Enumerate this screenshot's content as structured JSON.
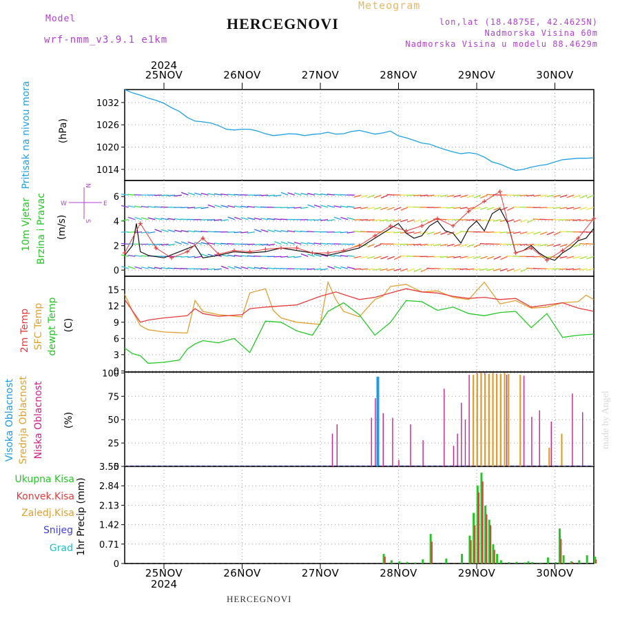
{
  "header": {
    "model_label": "Model",
    "model_name": "wrf-nmm_v3.9.1 e1km",
    "title": "HERCEGNOVI",
    "meteogram_label": "Meteogram",
    "lonlat": "lon,lat (18.4875E, 42.4625N)",
    "elevation": "Nadmorska Visina 60m",
    "model_elevation": "Nadmorska Visina u modelu 88.4629m"
  },
  "footer": {
    "station": "HERCEGNOVI",
    "watermark": "made by Angel"
  },
  "colors": {
    "pressure": "#1ea0e6",
    "temp2m": "#e83a3a",
    "sfc_temp": "#e0a030",
    "dewpoint": "#22c822",
    "high_cloud": "#1e9be6",
    "mid_cloud": "#e0a030",
    "low_cloud": "#d0208a",
    "total_precip": "#22c822",
    "conv_precip": "#e83a3a",
    "snow": "#4040e0",
    "hail": "#20c0c0",
    "wind_speed": "#111111",
    "wind_gust": "#e83a3a"
  },
  "chart_data": [
    {
      "id": "pressure",
      "type": "line",
      "ylabel_lines": [
        "Pritisak na nivou mora",
        "(hPa)"
      ],
      "yticks": [
        1014,
        1020,
        1026,
        1032
      ],
      "ylim": [
        1011,
        1035.5
      ],
      "x_days": [
        "25NOV",
        "26NOV",
        "27NOV",
        "28NOV",
        "29NOV",
        "30NOV"
      ],
      "top_year": "2024",
      "series": [
        {
          "x": [
            0,
            0.1,
            0.2,
            0.3,
            0.4,
            0.5,
            0.6,
            0.7,
            0.8,
            0.9,
            1.0,
            1.1,
            1.2,
            1.3,
            1.4,
            1.5,
            1.6,
            1.7,
            1.8,
            1.9,
            2.0,
            2.1,
            2.2,
            2.3,
            2.4,
            2.5,
            2.6,
            2.7,
            2.8,
            2.9,
            3.0,
            3.1,
            3.2,
            3.3,
            3.4,
            3.5,
            3.6,
            3.7,
            3.8,
            3.9,
            4.0,
            4.1,
            4.2,
            4.3,
            4.4,
            4.5,
            4.6,
            4.7,
            4.8,
            4.9,
            5.0,
            5.1,
            5.2,
            5.3,
            5.4,
            5.5,
            5.6,
            5.7,
            5.8,
            5.9,
            6.0
          ],
          "values": [
            1035.5,
            1034.6,
            1034.0,
            1033.2,
            1032.6,
            1031.8,
            1030.6,
            1029.6,
            1028.0,
            1027.0,
            1026.8,
            1026.5,
            1025.8,
            1024.8,
            1024.6,
            1024.8,
            1024.8,
            1024.3,
            1023.6,
            1023.1,
            1023.3,
            1023.6,
            1023.5,
            1023.1,
            1023.4,
            1023.6,
            1024.0,
            1023.5,
            1023.6,
            1024.2,
            1024.5,
            1024.0,
            1023.5,
            1023.8,
            1024.3,
            1023.0,
            1022.5,
            1021.8,
            1021.1,
            1020.8,
            1020.0,
            1019.3,
            1018.7,
            1018.2,
            1018.5,
            1018.2,
            1017.3,
            1016.0,
            1015.4,
            1014.5,
            1013.7,
            1014.0,
            1014.6,
            1015.0,
            1015.3,
            1016.0,
            1016.6,
            1016.8,
            1017.0,
            1017.0,
            1017.1
          ]
        }
      ]
    },
    {
      "id": "wind",
      "type": "line",
      "ylabel_lines": [
        "10m Vjetar",
        "Brzina i Pravac",
        "(m/s)"
      ],
      "compass": {
        "n": "N",
        "s": "S",
        "e": "E",
        "w": "W"
      },
      "yticks": [
        0,
        2,
        4,
        6
      ],
      "ylim": [
        -0.5,
        7.3
      ],
      "series": [
        {
          "name": "speed",
          "x": [
            0,
            0.1,
            0.15,
            0.2,
            0.3,
            0.5,
            0.7,
            0.9,
            1.0,
            1.2,
            1.4,
            1.6,
            1.8,
            2.0,
            2.2,
            2.4,
            2.6,
            2.8,
            3.0,
            3.1,
            3.2,
            3.3,
            3.4,
            3.5,
            3.6,
            3.7,
            3.8,
            3.9,
            4.0,
            4.1,
            4.2,
            4.3,
            4.4,
            4.5,
            4.6,
            4.7,
            4.8,
            4.9,
            5.0,
            5.1,
            5.2,
            5.3,
            5.4,
            5.5,
            5.6,
            5.7,
            5.8,
            5.9,
            6.0
          ],
          "values": [
            1.2,
            2.0,
            3.8,
            1.5,
            1.2,
            1.0,
            1.5,
            2.0,
            1.0,
            1.2,
            1.5,
            1.4,
            1.5,
            1.8,
            1.6,
            1.4,
            1.2,
            1.5,
            1.8,
            2.2,
            2.6,
            3.0,
            3.4,
            3.8,
            3.0,
            2.6,
            2.8,
            3.6,
            4.0,
            3.2,
            3.0,
            2.2,
            3.4,
            4.0,
            3.2,
            4.6,
            5.0,
            3.8,
            1.4,
            1.6,
            2.0,
            1.4,
            1.0,
            0.8,
            1.4,
            1.8,
            2.4,
            2.6,
            3.4
          ]
        },
        {
          "name": "gust",
          "x": [
            0,
            0.2,
            0.4,
            0.6,
            0.8,
            1.0,
            1.2,
            1.4,
            1.6,
            1.8,
            2.0,
            2.2,
            2.4,
            2.6,
            2.8,
            3.0,
            3.2,
            3.4,
            3.6,
            3.8,
            4.0,
            4.2,
            4.4,
            4.6,
            4.8,
            5.0,
            5.2,
            5.4,
            5.6,
            5.8,
            6.0
          ],
          "values": [
            1.4,
            3.8,
            1.8,
            1.0,
            1.5,
            2.6,
            1.3,
            1.6,
            1.5,
            1.7,
            1.8,
            1.8,
            1.4,
            1.4,
            1.6,
            2.0,
            2.8,
            3.6,
            3.2,
            3.6,
            4.2,
            3.6,
            4.8,
            5.6,
            6.4,
            1.4,
            1.8,
            0.8,
            1.6,
            2.6,
            4.2
          ]
        }
      ]
    },
    {
      "id": "temperature",
      "type": "line",
      "ylabel_lines": [
        "2m Temp",
        "SFC Temp",
        "dewpt Temp",
        "(C)"
      ],
      "yticks": [
        0,
        3,
        6,
        9,
        12,
        15
      ],
      "ylim": [
        -0.2,
        17.5
      ],
      "series": [
        {
          "name": "2m Temp",
          "x": [
            0,
            0.2,
            0.3,
            0.5,
            0.8,
            0.9,
            1.0,
            1.2,
            1.5,
            1.6,
            1.8,
            2.0,
            2.2,
            2.5,
            2.7,
            3.0,
            3.2,
            3.4,
            3.6,
            3.8,
            4.0,
            4.2,
            4.4,
            4.6,
            4.8,
            5.0,
            5.2,
            5.4,
            5.6,
            5.8,
            6.0
          ],
          "values": [
            13.2,
            9.0,
            9.4,
            9.8,
            10.2,
            11.5,
            10.6,
            10.1,
            10.4,
            11.5,
            11.8,
            12.0,
            12.2,
            13.8,
            14.6,
            13.2,
            13.6,
            14.4,
            15.2,
            14.6,
            14.4,
            13.8,
            13.4,
            13.6,
            13.2,
            13.4,
            11.8,
            12.2,
            12.6,
            11.6,
            11.0
          ]
        },
        {
          "name": "SFC Temp",
          "x": [
            0,
            0.1,
            0.2,
            0.3,
            0.5,
            0.8,
            0.9,
            1.0,
            1.2,
            1.5,
            1.6,
            1.8,
            1.9,
            2.0,
            2.2,
            2.5,
            2.6,
            2.7,
            2.8,
            3.0,
            3.2,
            3.3,
            3.4,
            3.6,
            3.8,
            4.0,
            4.2,
            4.4,
            4.6,
            4.8,
            5.0,
            5.2,
            5.4,
            5.6,
            5.8,
            5.9,
            6.0
          ],
          "values": [
            14.2,
            11.0,
            8.4,
            7.6,
            7.2,
            7.0,
            13.0,
            11.0,
            10.4,
            10.0,
            14.4,
            15.2,
            11.2,
            9.8,
            9.0,
            8.6,
            16.4,
            13.2,
            11.0,
            10.0,
            13.2,
            13.8,
            15.6,
            16.0,
            14.6,
            14.8,
            13.6,
            13.2,
            16.4,
            12.4,
            13.0,
            11.6,
            11.8,
            12.6,
            12.8,
            14.0,
            13.2
          ]
        },
        {
          "name": "dewpt Temp",
          "x": [
            0,
            0.1,
            0.2,
            0.3,
            0.5,
            0.7,
            0.8,
            0.9,
            1.0,
            1.2,
            1.4,
            1.6,
            1.8,
            2.0,
            2.2,
            2.4,
            2.6,
            2.8,
            3.0,
            3.2,
            3.4,
            3.6,
            3.8,
            4.0,
            4.2,
            4.4,
            4.6,
            4.8,
            5.0,
            5.2,
            5.4,
            5.6,
            5.8,
            6.0
          ],
          "values": [
            4.2,
            3.2,
            2.8,
            1.4,
            1.6,
            2.0,
            4.0,
            5.0,
            5.6,
            5.2,
            6.0,
            3.4,
            9.2,
            9.0,
            7.4,
            6.6,
            11.0,
            12.6,
            10.4,
            6.6,
            9.0,
            13.0,
            12.8,
            11.2,
            11.8,
            10.6,
            10.2,
            10.8,
            11.0,
            8.0,
            10.6,
            6.2,
            6.6,
            6.8
          ]
        }
      ]
    },
    {
      "id": "clouds",
      "type": "bar",
      "ylabel_lines": [
        "Visoka Oblacnost",
        "Srednja Oblacnost",
        "Niska Oblacnost",
        "(%)"
      ],
      "yticks": [
        0,
        25,
        50,
        75,
        100
      ],
      "ylim": [
        0,
        101
      ],
      "series": [
        {
          "name": "Niska Oblacnost",
          "x": [
            2.65,
            2.71,
            3.15,
            3.2,
            3.3,
            3.42,
            3.5,
            3.65,
            3.81,
            4.08,
            4.2,
            4.25,
            4.3,
            4.35,
            4.4,
            4.45,
            4.5,
            4.55,
            4.6,
            4.65,
            4.7,
            4.75,
            4.8,
            4.88,
            5.1,
            5.2,
            5.3,
            5.45,
            5.72,
            5.85
          ],
          "values": [
            35,
            45,
            52,
            73,
            57,
            52,
            7,
            45,
            28,
            83,
            22,
            35,
            68,
            50,
            98,
            86,
            100,
            100,
            100,
            99,
            100,
            99,
            98,
            98,
            97,
            53,
            60,
            48,
            78,
            58
          ]
        },
        {
          "name": "Srednja Oblacnost",
          "x": [
            4.45,
            4.5,
            4.55,
            4.6,
            4.65,
            4.7,
            4.75,
            4.8,
            4.85,
            4.9,
            5.05,
            5.42,
            5.58
          ],
          "values": [
            98,
            99,
            100,
            98,
            99,
            100,
            98,
            99,
            100,
            99,
            98,
            20,
            35
          ]
        },
        {
          "name": "Visoka Oblacnost",
          "x": [
            3.22
          ],
          "values": [
            96
          ]
        }
      ]
    },
    {
      "id": "precip",
      "type": "bar",
      "ylabel_lines": [
        "1hr Precip (mm)"
      ],
      "legend": [
        "Ukupna Kisa",
        "Konvek.Kisa",
        "Zaledj.Kisa",
        "Snijeg",
        "Grad"
      ],
      "yticks": [
        0,
        0.71,
        1.42,
        2.13,
        2.84,
        3.55
      ],
      "ylim": [
        0,
        3.55
      ],
      "series": [
        {
          "name": "Ukupna Kisa",
          "x": [
            3.3,
            3.4,
            3.5,
            3.6,
            3.7,
            3.8,
            3.9,
            4.1,
            4.3,
            4.4,
            4.45,
            4.5,
            4.55,
            4.6,
            4.65,
            4.7,
            4.75,
            4.8,
            4.9,
            5.0,
            5.1,
            5.15,
            5.2,
            5.3,
            5.4,
            5.5,
            5.55,
            5.6,
            5.7,
            5.8,
            5.9,
            6.0
          ],
          "values": [
            0.35,
            0.12,
            0.08,
            0.06,
            0.04,
            0.15,
            1.08,
            0.18,
            0.35,
            1.02,
            1.85,
            2.85,
            3.32,
            2.12,
            1.6,
            0.7,
            0.35,
            0.12,
            0.05,
            0.06,
            0.04,
            0.08,
            0.05,
            0.03,
            0.22,
            0.05,
            1.28,
            0.3,
            0.08,
            0.12,
            0.3,
            0.25
          ]
        },
        {
          "name": "Konvek.Kisa",
          "x": [
            3.32,
            3.92,
            4.42,
            4.47,
            4.52,
            4.57,
            4.62,
            4.67,
            4.72,
            5.57,
            5.72,
            6.02
          ],
          "values": [
            0.25,
            0.8,
            0.85,
            1.4,
            2.6,
            3.0,
            1.8,
            1.4,
            0.5,
            0.9,
            0.05,
            0.15
          ]
        }
      ]
    }
  ]
}
